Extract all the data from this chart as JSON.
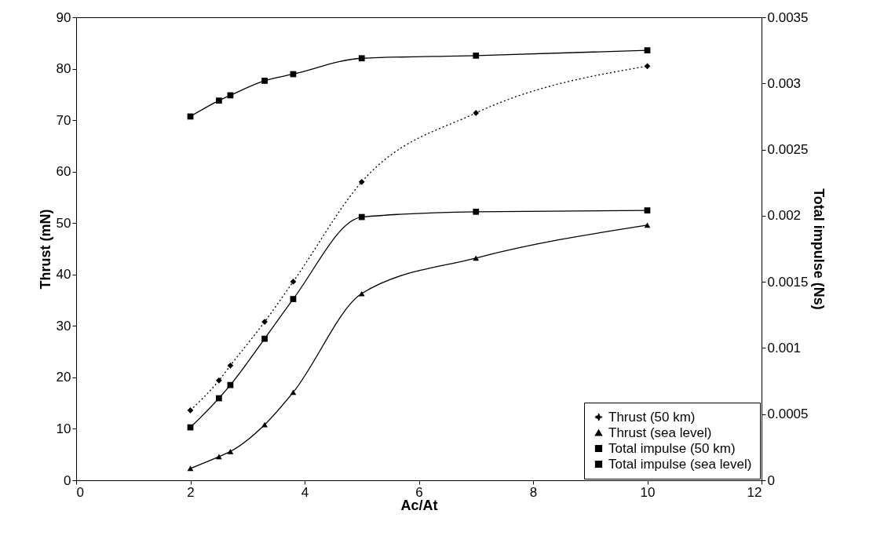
{
  "chart_data": {
    "type": "line",
    "xlabel": "Ac/At",
    "ylabel": "Thrust (mN)",
    "y2label": "Total impulse (Ns)",
    "x": [
      2,
      2.5,
      2.7,
      3.3,
      3.8,
      5,
      7,
      10
    ],
    "xlim": [
      0,
      12
    ],
    "xticks": [
      0,
      2,
      4,
      6,
      8,
      10,
      12
    ],
    "ylim": [
      0,
      90
    ],
    "yticks": [
      0,
      10,
      20,
      30,
      40,
      50,
      60,
      70,
      80,
      90
    ],
    "y2lim": [
      0,
      0.0035
    ],
    "y2ticks": [
      0,
      0.0005,
      0.001,
      0.0015,
      0.002,
      0.0025,
      0.003,
      0.0035
    ],
    "grid": false,
    "legend": "bottom right",
    "series": [
      {
        "name": "Thrust (50 km)",
        "color": "#000000",
        "marker": "diamond",
        "line_style": "dotted",
        "values": [
          13.6,
          19.4,
          22.3,
          30.8,
          38.6,
          58,
          71.4,
          80.5
        ]
      },
      {
        "name": "Thrust (sea level)",
        "color": "#000000",
        "marker": "triangle",
        "line_style": "solid",
        "values": [
          2.3,
          4.6,
          5.6,
          10.8,
          17.1,
          36.3,
          43.2,
          49.6
        ]
      },
      {
        "name": "Total impulse (50 km)",
        "color": "#000000",
        "marker": "square",
        "line_style": "solid",
        "axis": "y2",
        "values": [
          0.00275,
          0.00287,
          0.00291,
          0.00302,
          0.00307,
          0.00319,
          0.00321,
          0.00325
        ]
      },
      {
        "name": "Total impulse (sea level)",
        "color": "#000000",
        "marker": "square",
        "line_style": "solid",
        "axis": "y2",
        "values": [
          0.0004,
          0.00062,
          0.00072,
          0.00107,
          0.00137,
          0.00199,
          0.00203,
          0.00204
        ]
      }
    ]
  }
}
